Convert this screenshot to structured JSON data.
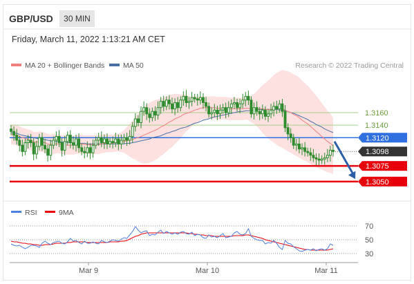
{
  "header": {
    "symbol": "GBP/USD",
    "timeframe": "30 MIN",
    "datetime": "Friday, March 11, 2022 1:13:21 AM CET"
  },
  "legend": {
    "bollinger_label": "MA 20 + Bollinger Bands",
    "ma50_label": "MA 50",
    "credit": "Research © 2022 Trading Central"
  },
  "colors": {
    "candle": "#2e8b2e",
    "ma20": "#f08080",
    "ma50": "#4a6fa5",
    "band_fill": "#fde0e0",
    "support": "#e8000b",
    "pivot": "#2f6fe0",
    "last_price": "#333333",
    "resistance_lines": "#a8d08d",
    "arrow": "#2d5fa8",
    "rsi": "#4f7fdc",
    "rsi_ma": "#e8000b"
  },
  "chart_data": [
    {
      "type": "candlestick",
      "title": "",
      "ylim": [
        1.302,
        1.3225
      ],
      "x_labels": [
        "Mar 9",
        "Mar 10",
        "Mar 11"
      ],
      "levels": {
        "resistance": [
          {
            "label": "1.3160",
            "value": 1.316
          },
          {
            "label": "1.3140",
            "value": 1.314
          }
        ],
        "pivot": {
          "label": "1.3120",
          "value": 1.312
        },
        "last_price": {
          "label": "1.3098",
          "value": 1.3098
        },
        "support": [
          {
            "label": "1.3075",
            "value": 1.3075
          },
          {
            "label": "1.3050",
            "value": 1.305
          }
        ]
      },
      "series": [
        {
          "name": "MA 20 + Bollinger Bands"
        },
        {
          "name": "MA 50"
        }
      ],
      "close": [
        1.313,
        1.3124,
        1.3116,
        1.3108,
        1.3098,
        1.3112,
        1.3116,
        1.3112,
        1.3094,
        1.3106,
        1.312,
        1.3108,
        1.3102,
        1.3092,
        1.3108,
        1.3116,
        1.3122,
        1.3112,
        1.31,
        1.3114,
        1.3124,
        1.3112,
        1.3108,
        1.3118,
        1.3104,
        1.3098,
        1.3096,
        1.3104,
        1.3096,
        1.3108,
        1.3116,
        1.312,
        1.3112,
        1.3118,
        1.311,
        1.3114,
        1.3112,
        1.3118,
        1.311,
        1.3116,
        1.312,
        1.3116,
        1.3122,
        1.3138,
        1.315,
        1.3144,
        1.3162,
        1.3168,
        1.3158,
        1.3152,
        1.3162,
        1.3156,
        1.3168,
        1.3178,
        1.317,
        1.318,
        1.3174,
        1.3166,
        1.3176,
        1.3168,
        1.318,
        1.3186,
        1.3176,
        1.3178,
        1.3184,
        1.3182,
        1.318,
        1.3184,
        1.3176,
        1.317,
        1.3158,
        1.316,
        1.3164,
        1.3158,
        1.3164,
        1.3168,
        1.316,
        1.3168,
        1.3174,
        1.3176,
        1.3168,
        1.3174,
        1.318,
        1.3186,
        1.318,
        1.3158,
        1.3168,
        1.3162,
        1.3158,
        1.3164,
        1.3154,
        1.3158,
        1.3164,
        1.317,
        1.3166,
        1.3174,
        1.3162,
        1.3136,
        1.3126,
        1.312,
        1.3108,
        1.311,
        1.3102,
        1.3104,
        1.3098,
        1.3096,
        1.3092,
        1.3088,
        1.3086,
        1.3084,
        1.3086,
        1.3088,
        1.3092,
        1.31,
        1.3098
      ],
      "ma20": [
        1.3125,
        1.3125,
        1.3124,
        1.3122,
        1.312,
        1.3119,
        1.3117,
        1.3116,
        1.3113,
        1.3113,
        1.3114,
        1.3113,
        1.3112,
        1.311,
        1.3109,
        1.311,
        1.311,
        1.311,
        1.3109,
        1.3109,
        1.3108,
        1.3108,
        1.3108,
        1.3109,
        1.311,
        1.311,
        1.3109,
        1.3109,
        1.3109,
        1.3109,
        1.3109,
        1.3109,
        1.311,
        1.3111,
        1.3111,
        1.3111,
        1.3111,
        1.3112,
        1.3112,
        1.3113,
        1.3114,
        1.3115,
        1.3116,
        1.3117,
        1.3119,
        1.312,
        1.3122,
        1.3124,
        1.3126,
        1.3128,
        1.313,
        1.3132,
        1.3134,
        1.3137,
        1.3139,
        1.3142,
        1.3145,
        1.3147,
        1.315,
        1.3152,
        1.3154,
        1.3157,
        1.3159,
        1.316,
        1.3162,
        1.3164,
        1.3165,
        1.3167,
        1.3168,
        1.3168,
        1.3168,
        1.3168,
        1.3168,
        1.3167,
        1.3167,
        1.3167,
        1.3167,
        1.3166,
        1.3166,
        1.3166,
        1.3166,
        1.3166,
        1.3166,
        1.3167,
        1.3167,
        1.3166,
        1.3166,
        1.3166,
        1.3166,
        1.3166,
        1.3165,
        1.3165,
        1.3165,
        1.3166,
        1.3166,
        1.3166,
        1.3166,
        1.3164,
        1.3162,
        1.316,
        1.3157,
        1.3155,
        1.3152,
        1.3148,
        1.3145,
        1.3142,
        1.3138,
        1.3134,
        1.313,
        1.3126,
        1.3122,
        1.3118,
        1.3114,
        1.3111,
        1.3107
      ],
      "ma50": [
        1.3128,
        1.3127,
        1.3127,
        1.3125,
        1.3124,
        1.3123,
        1.3122,
        1.3121,
        1.312,
        1.3119,
        1.3118,
        1.3118,
        1.3117,
        1.3116,
        1.3115,
        1.3114,
        1.3114,
        1.3114,
        1.3113,
        1.3113,
        1.3112,
        1.3112,
        1.3112,
        1.3111,
        1.3111,
        1.3111,
        1.3111,
        1.311,
        1.311,
        1.311,
        1.311,
        1.311,
        1.311,
        1.311,
        1.311,
        1.311,
        1.311,
        1.311,
        1.311,
        1.311,
        1.311,
        1.3111,
        1.3111,
        1.3112,
        1.3113,
        1.3114,
        1.3115,
        1.3116,
        1.3117,
        1.3118,
        1.312,
        1.3121,
        1.3122,
        1.3123,
        1.3125,
        1.3127,
        1.3128,
        1.313,
        1.3131,
        1.3133,
        1.3135,
        1.3136,
        1.3137,
        1.3139,
        1.3141,
        1.3143,
        1.3144,
        1.3146,
        1.3148,
        1.3149,
        1.315,
        1.3152,
        1.3153,
        1.3154,
        1.3155,
        1.3156,
        1.3157,
        1.3158,
        1.3159,
        1.316,
        1.3161,
        1.3162,
        1.3162,
        1.3163,
        1.3163,
        1.3164,
        1.3164,
        1.3165,
        1.3165,
        1.3165,
        1.3165,
        1.3165,
        1.3165,
        1.3165,
        1.3165,
        1.3164,
        1.3164,
        1.3163,
        1.3162,
        1.316,
        1.3159,
        1.3157,
        1.3155,
        1.3153,
        1.3151,
        1.3149,
        1.3146,
        1.3144,
        1.3141,
        1.3139,
        1.3137,
        1.3134,
        1.3132,
        1.313,
        1.3128
      ],
      "band_width": [
        0.0016,
        0.0016,
        0.0016,
        0.0016,
        0.0016,
        0.0016,
        0.0016,
        0.0016,
        0.0016,
        0.0016,
        0.0016,
        0.0016,
        0.0016,
        0.0016,
        0.0016,
        0.0016,
        0.0015,
        0.0015,
        0.0015,
        0.0015,
        0.0015,
        0.0015,
        0.0015,
        0.0015,
        0.0015,
        0.0015,
        0.0015,
        0.0015,
        0.0015,
        0.0015,
        0.0015,
        0.0015,
        0.0015,
        0.0015,
        0.0014,
        0.0014,
        0.0014,
        0.0014,
        0.0014,
        0.0016,
        0.0018,
        0.0022,
        0.0026,
        0.003,
        0.0034,
        0.0038,
        0.0042,
        0.0045,
        0.0047,
        0.0048,
        0.0048,
        0.0048,
        0.0047,
        0.0046,
        0.0045,
        0.0044,
        0.0043,
        0.0042,
        0.004,
        0.0038,
        0.0035,
        0.0032,
        0.0029,
        0.0026,
        0.0024,
        0.0022,
        0.002,
        0.0019,
        0.0018,
        0.0018,
        0.0018,
        0.0018,
        0.0018,
        0.0018,
        0.0018,
        0.0018,
        0.0018,
        0.0018,
        0.0018,
        0.0018,
        0.0018,
        0.0018,
        0.0018,
        0.0018,
        0.0019,
        0.0021,
        0.0024,
        0.0028,
        0.0033,
        0.0038,
        0.0042,
        0.0046,
        0.005,
        0.0054,
        0.0057,
        0.006,
        0.0062,
        0.0063,
        0.0064,
        0.0064,
        0.0064,
        0.0064,
        0.0064,
        0.0063,
        0.0062,
        0.0061,
        0.006,
        0.0058,
        0.0057,
        0.0055,
        0.0053,
        0.0051,
        0.0049,
        0.0047,
        0.0045
      ]
    },
    {
      "type": "line",
      "title": "",
      "ylim": [
        23,
        77
      ],
      "y_ticks": [
        "70",
        "50",
        "30"
      ],
      "series": [
        {
          "name": "RSI",
          "values": [
            44,
            42,
            41,
            42,
            39,
            37,
            39,
            42,
            42,
            41,
            39,
            45,
            48,
            45,
            43,
            46,
            47,
            48,
            45,
            44,
            47,
            52,
            48,
            49,
            46,
            44,
            48,
            45,
            45,
            47,
            45,
            44,
            49,
            47,
            46,
            48,
            50,
            49,
            48,
            51,
            53,
            52,
            57,
            62,
            69,
            64,
            60,
            62,
            63,
            56,
            58,
            57,
            61,
            64,
            59,
            62,
            60,
            58,
            60,
            58,
            61,
            62,
            59,
            58,
            61,
            56,
            58,
            57,
            53,
            52,
            57,
            54,
            55,
            53,
            56,
            59,
            53,
            54,
            55,
            60,
            62,
            58,
            57,
            59,
            66,
            55,
            52,
            50,
            49,
            49,
            44,
            46,
            45,
            49,
            45,
            39,
            36,
            49,
            45,
            44,
            40,
            37,
            34,
            33,
            35,
            36,
            35,
            37,
            34,
            36,
            37,
            35,
            37,
            44,
            42
          ]
        },
        {
          "name": "9MA",
          "values": [
            48,
            47,
            47,
            46,
            45,
            45,
            44,
            44,
            43,
            43,
            42,
            42,
            43,
            43,
            43,
            44,
            45,
            45,
            45,
            45,
            46,
            46,
            47,
            47,
            47,
            47,
            47,
            46,
            46,
            46,
            46,
            46,
            46,
            46,
            46,
            47,
            47,
            47,
            47,
            48,
            48,
            49,
            51,
            53,
            55,
            56,
            58,
            59,
            60,
            60,
            60,
            60,
            60,
            60,
            60,
            60,
            60,
            60,
            60,
            60,
            60,
            60,
            60,
            59,
            59,
            58,
            58,
            57,
            57,
            56,
            56,
            56,
            55,
            55,
            55,
            55,
            55,
            55,
            55,
            56,
            56,
            56,
            56,
            57,
            57,
            56,
            55,
            54,
            53,
            52,
            50,
            49,
            48,
            47,
            46,
            45,
            44,
            43,
            42,
            41,
            40,
            39,
            38,
            37,
            36,
            36,
            35,
            35,
            35,
            35,
            35,
            35,
            35,
            36,
            37
          ]
        }
      ]
    }
  ]
}
